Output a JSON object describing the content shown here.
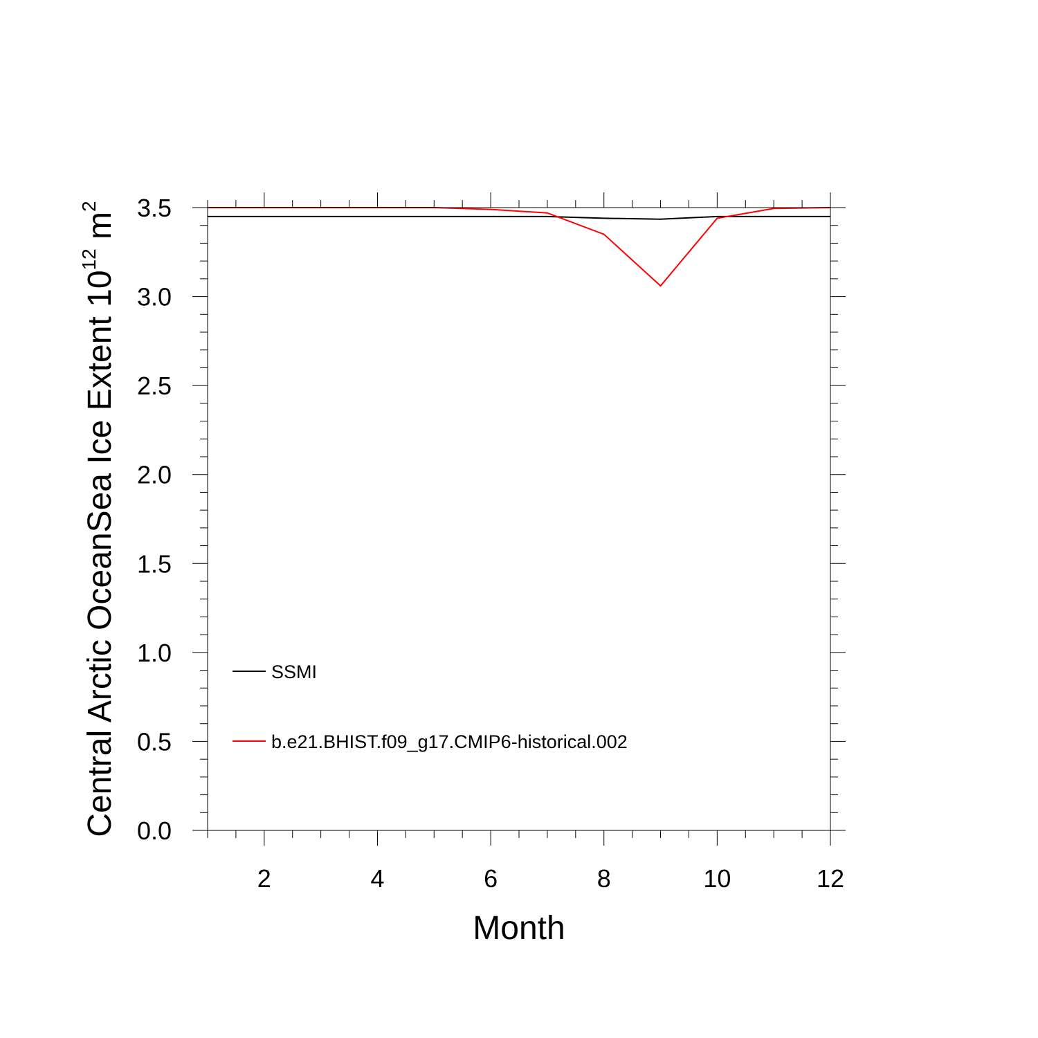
{
  "chart_data": {
    "type": "line",
    "xlabel": "Month",
    "ylabel_main": "Central Arctic OceanSea Ice Extent 10",
    "ylabel_exp1": "12",
    "ylabel_unit": " m",
    "ylabel_exp2": "2",
    "xlim": [
      1,
      12
    ],
    "ylim": [
      0,
      3.5
    ],
    "x_ticks": [
      2,
      4,
      6,
      8,
      10,
      12
    ],
    "x_tick_labels": [
      "2",
      "4",
      "6",
      "8",
      "10",
      "12"
    ],
    "y_ticks": [
      0,
      0.5,
      1.0,
      1.5,
      2.0,
      2.5,
      3.0,
      3.5
    ],
    "y_tick_labels": [
      "0.0",
      "0.5",
      "1.0",
      "1.5",
      "2.0",
      "2.5",
      "3.0",
      "3.5"
    ],
    "grid": false,
    "legend_placement": "bottom-left",
    "x": [
      1,
      2,
      3,
      4,
      5,
      6,
      7,
      8,
      9,
      10,
      11,
      12
    ],
    "series": [
      {
        "name": "SSMI",
        "color": "#000000",
        "values": [
          3.45,
          3.45,
          3.45,
          3.45,
          3.45,
          3.45,
          3.45,
          3.44,
          3.435,
          3.45,
          3.45,
          3.45
        ]
      },
      {
        "name": "b.e21.BHIST.f09_g17.CMIP6-historical.002",
        "color": "#ff0000",
        "values": [
          3.5,
          3.5,
          3.5,
          3.5,
          3.5,
          3.49,
          3.47,
          3.35,
          3.06,
          3.44,
          3.495,
          3.5
        ]
      }
    ]
  }
}
